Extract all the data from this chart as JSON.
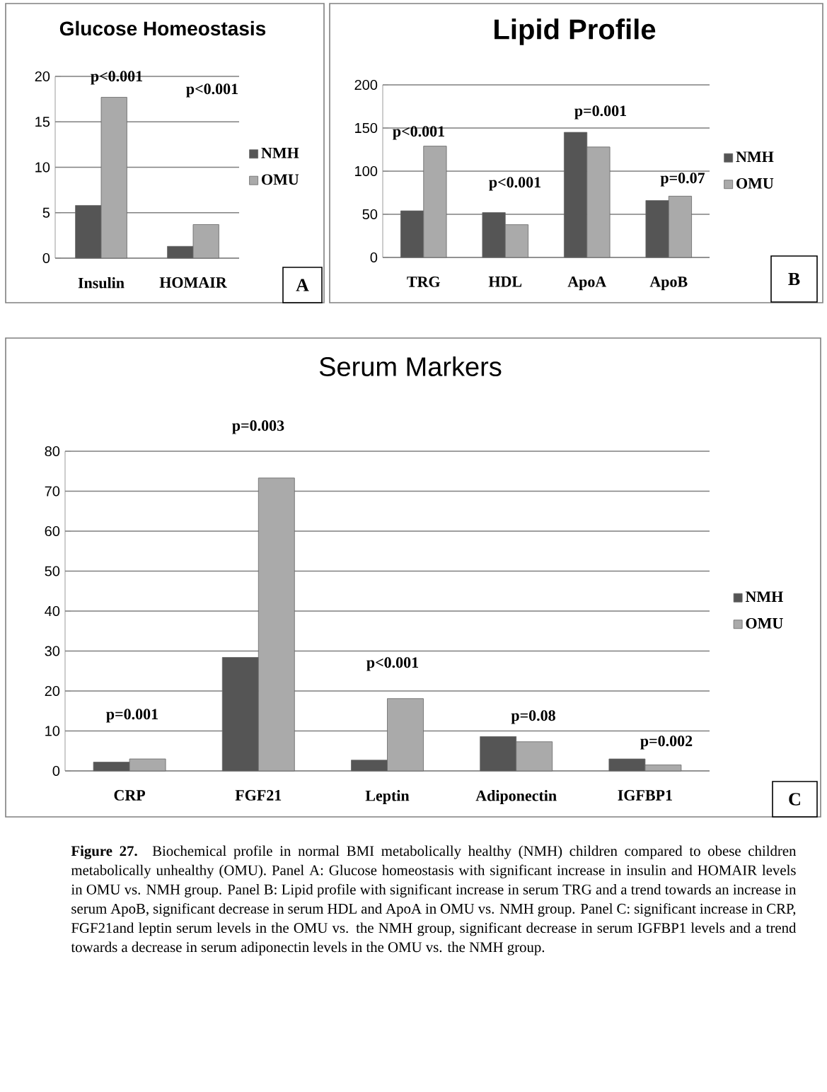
{
  "chart_data": [
    {
      "type": "bar",
      "title": "Glucose Homeostasis",
      "categories": [
        "Insulin",
        "HOMAIR"
      ],
      "series": [
        {
          "name": "NMH",
          "color": "#555555",
          "values": [
            5.8,
            1.3
          ]
        },
        {
          "name": "OMU",
          "color": "#aaaaaa",
          "values": [
            17.7,
            3.7
          ]
        }
      ],
      "ylim": [
        0,
        20
      ],
      "yticks": [
        0,
        5,
        10,
        15,
        20
      ],
      "grid": "y",
      "legend": "right",
      "annotations": [
        "p<0.001",
        "p<0.001",
        "A"
      ]
    },
    {
      "type": "bar",
      "title": "Lipid Profile",
      "categories": [
        "TRG",
        "HDL",
        "ApoA",
        "ApoB"
      ],
      "series": [
        {
          "name": "NMH",
          "color": "#555555",
          "values": [
            54,
            52,
            145,
            66
          ]
        },
        {
          "name": "OMU",
          "color": "#aaaaaa",
          "values": [
            129,
            38,
            128,
            71
          ]
        }
      ],
      "ylim": [
        0,
        200
      ],
      "yticks": [
        0,
        50,
        100,
        150,
        200
      ],
      "grid": "y",
      "legend": "right",
      "annotations": [
        "p<0.001",
        "p<0.001",
        "p=0.001",
        "p=0.07",
        "B"
      ]
    },
    {
      "type": "bar",
      "title": "Serum Markers",
      "categories": [
        "CRP",
        "FGF21",
        "Leptin",
        "Adiponectin",
        "IGFBP1"
      ],
      "series": [
        {
          "name": "NMH",
          "color": "#555555",
          "values": [
            2.2,
            28.4,
            2.7,
            8.6,
            3.0
          ]
        },
        {
          "name": "OMU",
          "color": "#aaaaaa",
          "values": [
            3.0,
            73.3,
            18.1,
            7.3,
            1.5
          ]
        }
      ],
      "ylim": [
        0,
        80
      ],
      "yticks": [
        0,
        10,
        20,
        30,
        40,
        50,
        60,
        70,
        80
      ],
      "grid": "y",
      "legend": "right",
      "annotations": [
        "p=0.001",
        "p=0.003",
        "p<0.001",
        "p=0.08",
        "p=0.002",
        "C",
        "**Figure 27.** Biochemical profile in normal BMI metabolically healthy (NMH) children compared to obese children metabolically unhealthy (OMU). Panel A: Glucose homeostasis with significant increase in insulin and HOMAIR levels in OMU vs. NMH group. Panel B: Lipid profile with significant increase in serum TRG and a trend towards an increase in serum ApoB, significant decrease in serum HDL and ApoA in OMU vs. NMH group. Panel C: significant increase in CRP, FGF21and leptin serum levels in the OMU vs. the NMH group, significant decrease in serum IGFBP1 levels and a trend towards a decrease in serum adiponectin levels in the OMU vs. the NMH group."
      ]
    }
  ]
}
